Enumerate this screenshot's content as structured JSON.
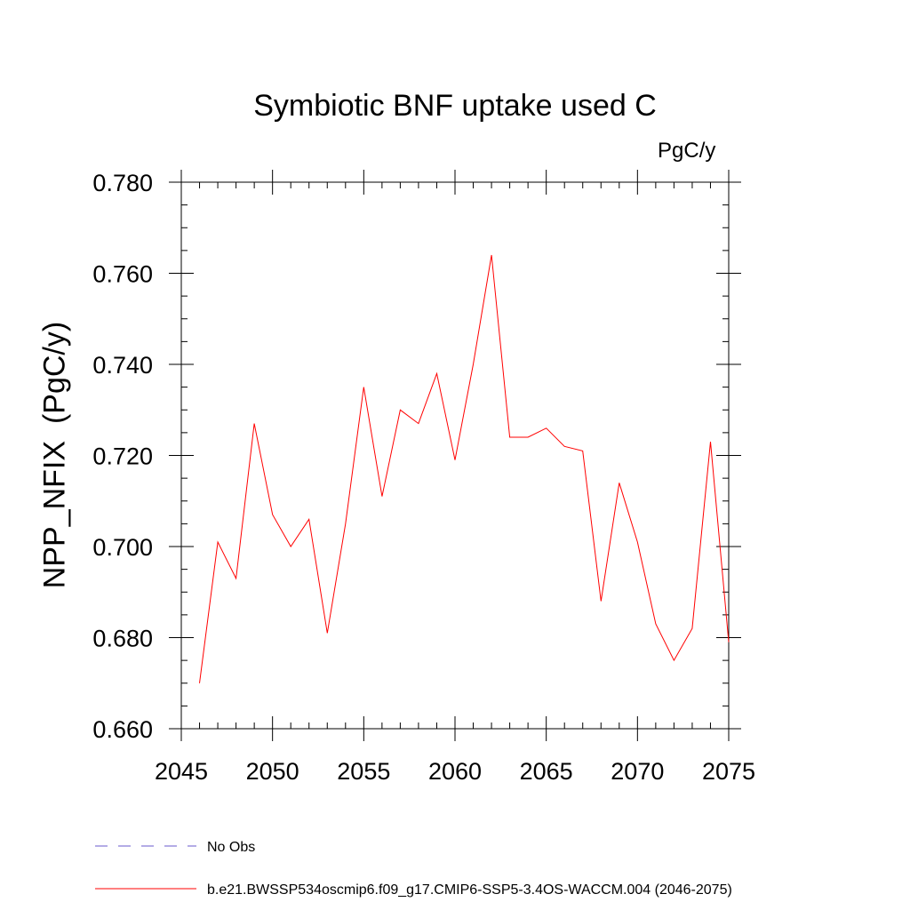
{
  "chart_data": {
    "type": "line",
    "title": "Symbiotic BNF uptake used C",
    "units_label": "PgC/y",
    "ylabel": "NPP_NFIX  (PgC/y)",
    "xlabel": "",
    "xlim": [
      2045,
      2075
    ],
    "ylim": [
      0.66,
      0.78
    ],
    "x_ticks": [
      2045,
      2050,
      2055,
      2060,
      2065,
      2070,
      2075
    ],
    "x_tick_labels": [
      "2045",
      "2050",
      "2055",
      "2060",
      "2065",
      "2070",
      "2075"
    ],
    "y_ticks": [
      0.66,
      0.68,
      0.7,
      0.72,
      0.74,
      0.76,
      0.78
    ],
    "y_tick_labels": [
      "0.660",
      "0.680",
      "0.700",
      "0.720",
      "0.740",
      "0.760",
      "0.780"
    ],
    "grid": false,
    "legend_placement": "bottom",
    "series": [
      {
        "name": "b.e21.BWSSP534oscmip6.f09_g17.CMIP6-SSP5-3.4OS-WACCM.004 (2046-2075)",
        "color": "#ff0000",
        "style": "solid",
        "x": [
          2046,
          2047,
          2048,
          2049,
          2050,
          2051,
          2052,
          2053,
          2054,
          2055,
          2056,
          2057,
          2058,
          2059,
          2060,
          2061,
          2062,
          2063,
          2064,
          2065,
          2066,
          2067,
          2068,
          2069,
          2070,
          2071,
          2072,
          2073,
          2074,
          2075
        ],
        "values": [
          0.67,
          0.701,
          0.693,
          0.727,
          0.707,
          0.7,
          0.706,
          0.681,
          0.705,
          0.735,
          0.711,
          0.73,
          0.727,
          0.738,
          0.719,
          0.74,
          0.764,
          0.724,
          0.724,
          0.726,
          0.722,
          0.721,
          0.688,
          0.714,
          0.701,
          0.683,
          0.675,
          0.682,
          0.723,
          0.679
        ]
      }
    ],
    "legend_entries": [
      {
        "label": "No Obs",
        "color": "#6a5acd",
        "style": "dashed"
      },
      {
        "label": "b.e21.BWSSP534oscmip6.f09_g17.CMIP6-SSP5-3.4OS-WACCM.004 (2046-2075)",
        "color": "#ff0000",
        "style": "solid"
      }
    ]
  }
}
